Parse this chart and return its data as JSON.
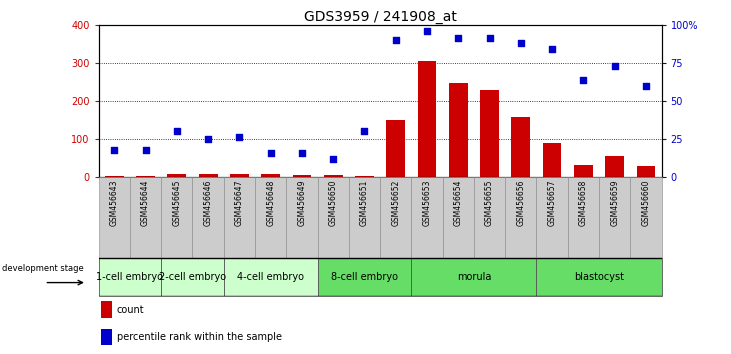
{
  "title": "GDS3959 / 241908_at",
  "samples": [
    "GSM456643",
    "GSM456644",
    "GSM456645",
    "GSM456646",
    "GSM456647",
    "GSM456648",
    "GSM456649",
    "GSM456650",
    "GSM456651",
    "GSM456652",
    "GSM456653",
    "GSM456654",
    "GSM456655",
    "GSM456656",
    "GSM456657",
    "GSM456658",
    "GSM456659",
    "GSM456660"
  ],
  "count": [
    2,
    2,
    8,
    8,
    8,
    8,
    5,
    5,
    2,
    150,
    305,
    248,
    228,
    158,
    90,
    32,
    55,
    28
  ],
  "percentile": [
    18,
    18,
    30,
    25,
    26,
    16,
    16,
    12,
    30,
    90,
    96,
    91,
    91,
    88,
    84,
    64,
    73,
    60
  ],
  "stages": [
    {
      "label": "1-cell embryo",
      "start": 0,
      "end": 2,
      "color": "#ccffcc"
    },
    {
      "label": "2-cell embryo",
      "start": 2,
      "end": 4,
      "color": "#ccffcc"
    },
    {
      "label": "4-cell embryo",
      "start": 4,
      "end": 7,
      "color": "#ccffcc"
    },
    {
      "label": "8-cell embryo",
      "start": 7,
      "end": 10,
      "color": "#66dd66"
    },
    {
      "label": "morula",
      "start": 10,
      "end": 14,
      "color": "#66dd66"
    },
    {
      "label": "blastocyst",
      "start": 14,
      "end": 18,
      "color": "#66dd66"
    }
  ],
  "bar_color": "#cc0000",
  "dot_color": "#0000cc",
  "ylim_left": [
    0,
    400
  ],
  "ylim_right": [
    0,
    100
  ],
  "yticks_left": [
    0,
    100,
    200,
    300,
    400
  ],
  "yticks_right": [
    0,
    25,
    50,
    75,
    100
  ],
  "ytick_labels_right": [
    "0",
    "25",
    "50",
    "75",
    "100%"
  ],
  "stage_row_color": "#cccccc",
  "background_color": "#ffffff",
  "title_fontsize": 10,
  "tick_fontsize": 7,
  "sample_fontsize": 5.5,
  "stage_fontsize": 7,
  "legend_fontsize": 7
}
